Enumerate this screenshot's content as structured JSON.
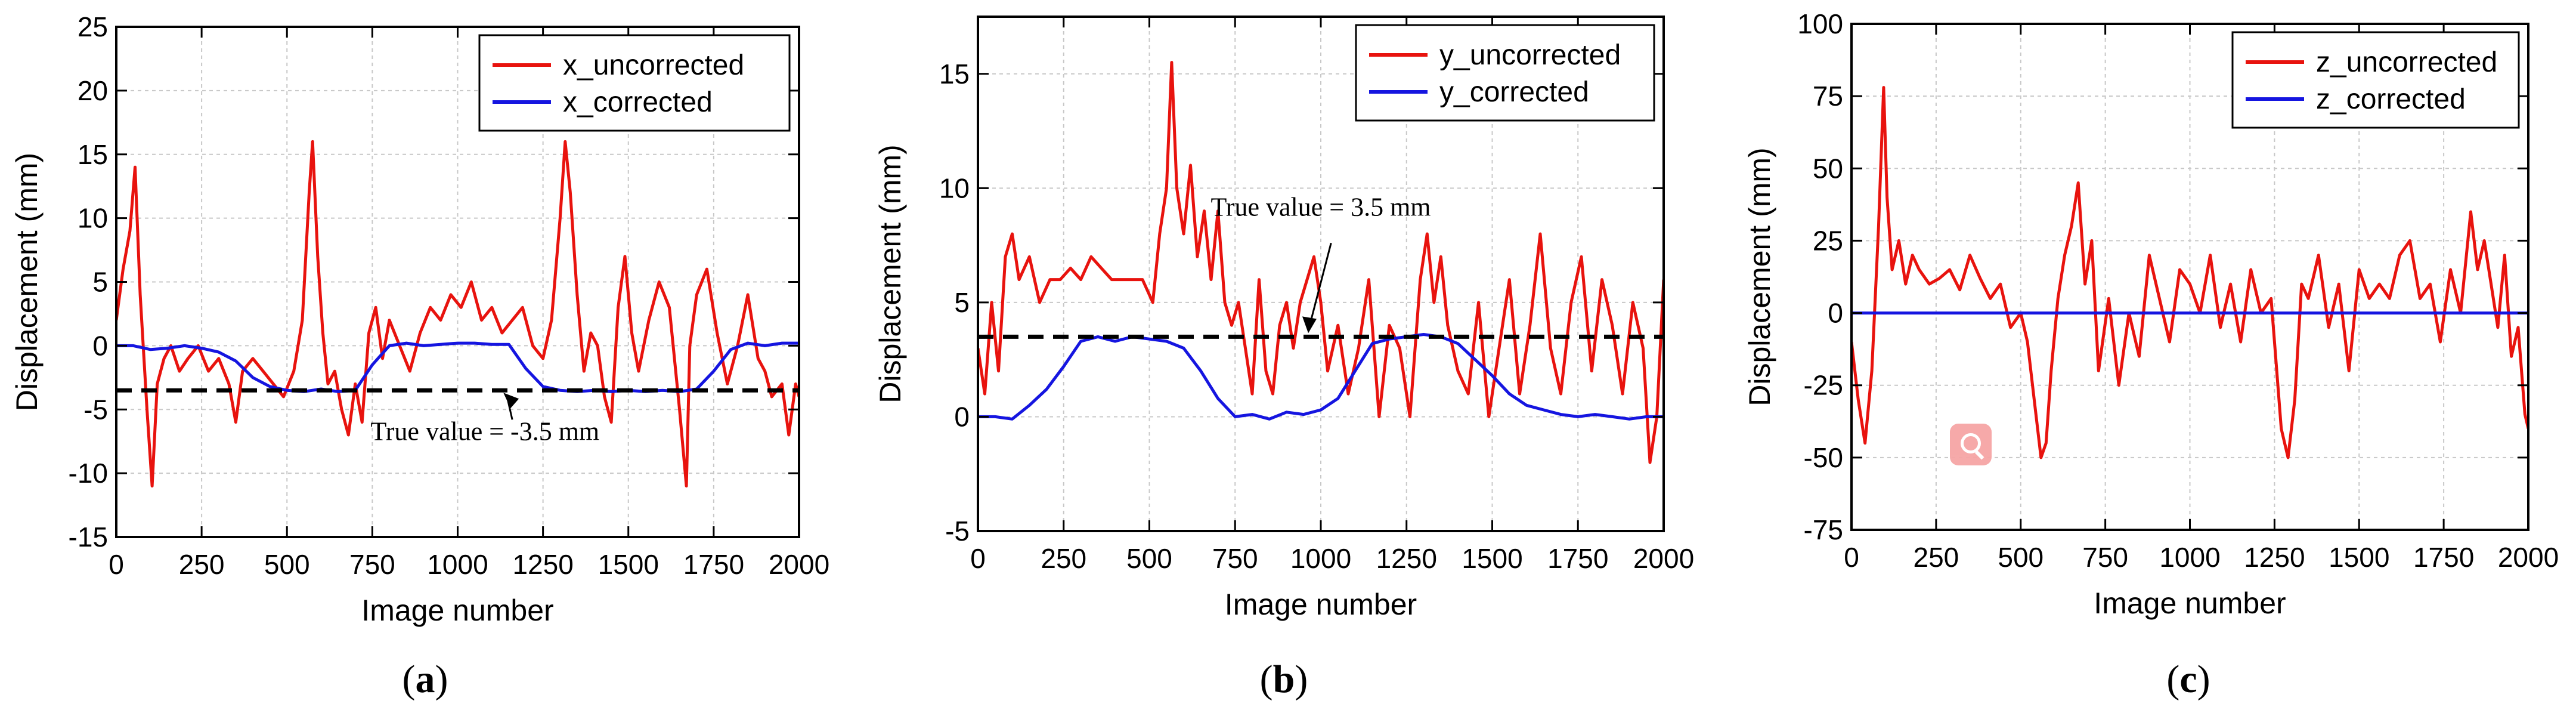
{
  "chart_data": [
    {
      "type": "line",
      "panel_label": "a",
      "xlabel": "Image number",
      "ylabel": "Displacement (mm)",
      "xlim": [
        0,
        2000
      ],
      "ylim": [
        -15,
        25
      ],
      "xticks": [
        0,
        250,
        500,
        750,
        1000,
        1250,
        1500,
        1750,
        2000
      ],
      "yticks": [
        -15,
        -10,
        -5,
        0,
        5,
        10,
        15,
        20,
        25
      ],
      "legend": "top-right",
      "series": [
        {
          "name": "x_uncorrected",
          "color": "#e8130e",
          "x": [
            0,
            20,
            40,
            55,
            70,
            90,
            105,
            120,
            140,
            160,
            185,
            210,
            240,
            270,
            300,
            330,
            350,
            370,
            400,
            430,
            460,
            490,
            520,
            545,
            565,
            575,
            590,
            605,
            620,
            640,
            660,
            680,
            700,
            720,
            740,
            760,
            780,
            800,
            830,
            860,
            890,
            920,
            950,
            980,
            1010,
            1040,
            1070,
            1100,
            1130,
            1160,
            1190,
            1220,
            1250,
            1275,
            1300,
            1315,
            1330,
            1350,
            1370,
            1390,
            1410,
            1430,
            1450,
            1470,
            1490,
            1510,
            1530,
            1560,
            1590,
            1620,
            1650,
            1670,
            1680,
            1700,
            1730,
            1760,
            1790,
            1820,
            1850,
            1880,
            1900,
            1920,
            1950,
            1970,
            1990,
            2000
          ],
          "y": [
            2,
            6,
            9,
            14,
            4,
            -5,
            -11,
            -3,
            -1,
            0,
            -2,
            -1,
            0,
            -2,
            -1,
            -3,
            -6,
            -2,
            -1,
            -2,
            -3,
            -4,
            -2,
            2,
            12,
            16,
            7,
            1,
            -3,
            -2,
            -5,
            -7,
            -3,
            -6,
            1,
            3,
            -1,
            2,
            0,
            -2,
            1,
            3,
            2,
            4,
            3,
            5,
            2,
            3,
            1,
            2,
            3,
            0,
            -1,
            2,
            10,
            16,
            12,
            4,
            -2,
            1,
            0,
            -4,
            -6,
            3,
            7,
            1,
            -2,
            2,
            5,
            3,
            -5,
            -11,
            0,
            4,
            6,
            1,
            -3,
            0,
            4,
            -1,
            -2,
            -4,
            -3,
            -7,
            -3,
            -4
          ]
        },
        {
          "name": "x_corrected",
          "color": "#1515e0",
          "x": [
            0,
            50,
            100,
            150,
            200,
            250,
            300,
            350,
            400,
            450,
            500,
            550,
            600,
            650,
            700,
            750,
            800,
            850,
            900,
            950,
            1000,
            1050,
            1100,
            1150,
            1200,
            1250,
            1300,
            1350,
            1400,
            1450,
            1500,
            1550,
            1600,
            1650,
            1700,
            1750,
            1800,
            1850,
            1900,
            1950,
            2000
          ],
          "y": [
            0,
            0,
            -0.3,
            -0.2,
            0,
            -0.2,
            -0.5,
            -1.2,
            -2.5,
            -3.2,
            -3.5,
            -3.6,
            -3.4,
            -3.6,
            -3.5,
            -1.5,
            0,
            0.2,
            0,
            0.1,
            0.2,
            0.2,
            0.1,
            0.1,
            -1.8,
            -3.2,
            -3.5,
            -3.6,
            -3.5,
            -3.6,
            -3.5,
            -3.6,
            -3.5,
            -3.6,
            -3.4,
            -2.0,
            -0.3,
            0.2,
            0,
            0.2,
            0.2
          ]
        },
        {
          "name": "true value",
          "color": "#000000",
          "style": "dashed",
          "x": [
            0,
            2000
          ],
          "y": [
            -3.5,
            -3.5
          ]
        }
      ],
      "annotation": {
        "text": "True value = -3.5 mm",
        "point_x": 1120,
        "point_y": -3.5
      }
    },
    {
      "type": "line",
      "panel_label": "b",
      "xlabel": "Image number",
      "ylabel": "Displacement (mm)",
      "xlim": [
        0,
        2000
      ],
      "ylim": [
        -5,
        17.5
      ],
      "xticks": [
        0,
        250,
        500,
        750,
        1000,
        1250,
        1500,
        1750,
        2000
      ],
      "yticks": [
        -5,
        0,
        5,
        10,
        15
      ],
      "legend": "top-right",
      "series": [
        {
          "name": "y_uncorrected",
          "color": "#e8130e",
          "x": [
            0,
            20,
            40,
            60,
            80,
            100,
            120,
            150,
            180,
            210,
            240,
            270,
            300,
            330,
            360,
            390,
            420,
            450,
            480,
            510,
            530,
            550,
            565,
            580,
            600,
            620,
            640,
            660,
            680,
            700,
            720,
            740,
            760,
            780,
            800,
            820,
            840,
            860,
            880,
            900,
            920,
            940,
            960,
            980,
            1000,
            1020,
            1050,
            1080,
            1110,
            1140,
            1170,
            1200,
            1230,
            1260,
            1290,
            1310,
            1330,
            1350,
            1370,
            1400,
            1430,
            1460,
            1490,
            1520,
            1550,
            1580,
            1610,
            1640,
            1670,
            1700,
            1730,
            1760,
            1790,
            1820,
            1850,
            1880,
            1910,
            1940,
            1960,
            1980,
            2000
          ],
          "y": [
            3,
            1,
            5,
            2,
            7,
            8,
            6,
            7,
            5,
            6,
            6,
            6.5,
            6,
            7,
            6.5,
            6,
            6,
            6,
            6,
            5,
            8,
            10,
            15.5,
            10,
            8,
            11,
            7,
            9,
            6,
            9,
            5,
            4,
            5,
            3,
            1,
            6,
            2,
            1,
            4,
            5,
            3,
            5,
            6,
            7,
            5,
            2,
            4,
            1,
            3,
            6,
            0,
            4,
            3,
            0,
            6,
            8,
            5,
            7,
            4,
            2,
            1,
            5,
            0,
            3,
            6,
            1,
            4,
            8,
            3,
            1,
            5,
            7,
            2,
            6,
            4,
            1,
            5,
            3,
            -2,
            0,
            6
          ]
        },
        {
          "name": "y_corrected",
          "color": "#1515e0",
          "x": [
            0,
            50,
            100,
            150,
            200,
            250,
            300,
            350,
            400,
            450,
            500,
            550,
            600,
            650,
            700,
            750,
            800,
            850,
            900,
            950,
            1000,
            1050,
            1100,
            1150,
            1200,
            1250,
            1300,
            1350,
            1400,
            1450,
            1500,
            1550,
            1600,
            1650,
            1700,
            1750,
            1800,
            1850,
            1900,
            1950,
            2000
          ],
          "y": [
            0,
            0,
            -0.1,
            0.5,
            1.2,
            2.2,
            3.3,
            3.5,
            3.3,
            3.5,
            3.4,
            3.3,
            3.0,
            2.0,
            0.8,
            0,
            0.1,
            -0.1,
            0.2,
            0.1,
            0.3,
            0.8,
            2.0,
            3.2,
            3.4,
            3.5,
            3.6,
            3.5,
            3.2,
            2.5,
            1.8,
            1.0,
            0.5,
            0.3,
            0.1,
            0,
            0.1,
            0,
            -0.1,
            0,
            0
          ]
        },
        {
          "name": "true value",
          "color": "#000000",
          "style": "dashed",
          "x": [
            0,
            2000
          ],
          "y": [
            3.5,
            3.5
          ]
        }
      ],
      "annotation": {
        "text": "True value = 3.5 mm",
        "point_x": 960,
        "point_y": 3.5
      }
    },
    {
      "type": "line",
      "panel_label": "c",
      "xlabel": "Image number",
      "ylabel": "Displacement (mm)",
      "xlim": [
        0,
        2000
      ],
      "ylim": [
        -75,
        100
      ],
      "xticks": [
        0,
        250,
        500,
        750,
        1000,
        1250,
        1500,
        1750,
        2000
      ],
      "yticks": [
        -75,
        -50,
        -25,
        0,
        25,
        50,
        75,
        100
      ],
      "legend": "top-right",
      "series": [
        {
          "name": "z_uncorrected",
          "color": "#e8130e",
          "x": [
            0,
            20,
            40,
            60,
            80,
            95,
            105,
            120,
            140,
            160,
            180,
            200,
            230,
            260,
            290,
            320,
            350,
            380,
            410,
            440,
            470,
            500,
            520,
            540,
            560,
            575,
            590,
            610,
            630,
            650,
            670,
            690,
            710,
            730,
            760,
            790,
            820,
            850,
            880,
            910,
            940,
            970,
            1000,
            1030,
            1060,
            1090,
            1120,
            1150,
            1180,
            1210,
            1240,
            1270,
            1290,
            1310,
            1330,
            1350,
            1380,
            1410,
            1440,
            1470,
            1500,
            1530,
            1560,
            1590,
            1620,
            1650,
            1680,
            1710,
            1740,
            1770,
            1800,
            1830,
            1850,
            1870,
            1890,
            1910,
            1930,
            1950,
            1970,
            1990,
            2000
          ],
          "y": [
            -10,
            -30,
            -45,
            -20,
            30,
            78,
            40,
            15,
            25,
            10,
            20,
            15,
            10,
            12,
            15,
            8,
            20,
            12,
            5,
            10,
            -5,
            0,
            -10,
            -30,
            -50,
            -45,
            -20,
            5,
            20,
            30,
            45,
            10,
            25,
            -20,
            5,
            -25,
            0,
            -15,
            20,
            5,
            -10,
            15,
            10,
            0,
            20,
            -5,
            10,
            -10,
            15,
            0,
            5,
            -40,
            -50,
            -30,
            10,
            5,
            20,
            -5,
            10,
            -20,
            15,
            5,
            10,
            5,
            20,
            25,
            5,
            10,
            -10,
            15,
            0,
            35,
            15,
            25,
            10,
            -5,
            20,
            -15,
            -5,
            -35,
            -40
          ]
        },
        {
          "name": "z_corrected",
          "color": "#1515e0",
          "x": [
            0,
            250,
            500,
            750,
            1000,
            1250,
            1500,
            1750,
            2000
          ],
          "y": [
            0,
            0,
            0,
            0,
            0,
            0,
            0,
            0,
            0
          ]
        }
      ]
    }
  ],
  "captions": [
    "a",
    "b",
    "c"
  ]
}
